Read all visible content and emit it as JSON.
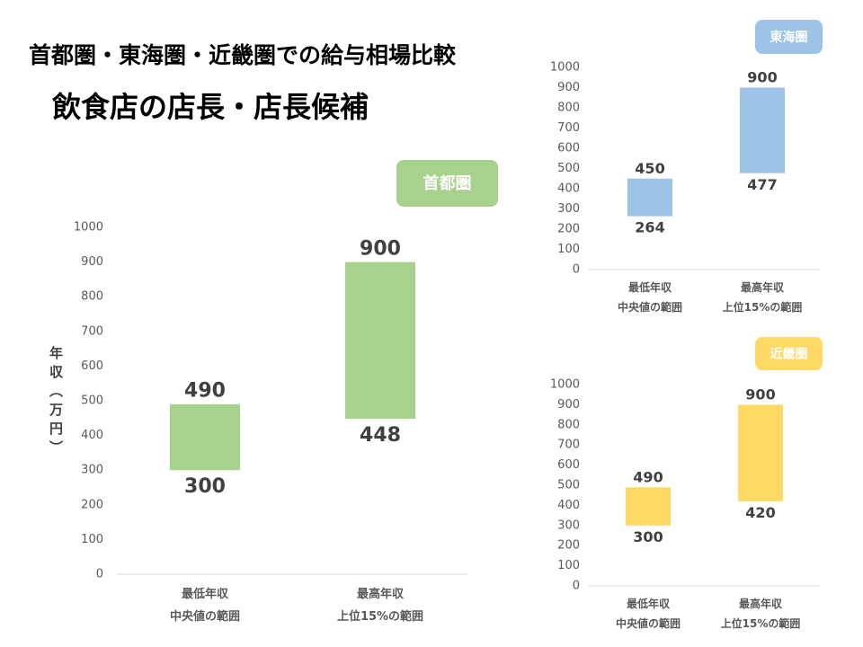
{
  "header": {
    "title": "首都圏・東海圏・近畿圏での給与相場比較",
    "subtitle": "飲食店の店長・店長候補"
  },
  "chart_data": [
    {
      "type": "range_bar",
      "title": "首都圏",
      "color": "#a9d18e",
      "ylabel": "年収（万円）",
      "categories": [
        "最低年収\n中央値の範囲",
        "最高年収\n上位15%の範囲"
      ],
      "low": [
        300,
        448
      ],
      "high": [
        490,
        900
      ],
      "ylim": [
        0,
        1000
      ],
      "yticks": [
        0,
        100,
        200,
        300,
        400,
        500,
        600,
        700,
        800,
        900,
        1000
      ],
      "grid": false
    },
    {
      "type": "range_bar",
      "title": "東海圏",
      "color": "#9dc3e6",
      "categories": [
        "最低年収\n中央値の範囲",
        "最高年収\n上位15%の範囲"
      ],
      "low": [
        264,
        477
      ],
      "high": [
        450,
        900
      ],
      "ylim": [
        0,
        1000
      ],
      "yticks": [
        0,
        100,
        200,
        300,
        400,
        500,
        600,
        700,
        800,
        900,
        1000
      ],
      "grid": false
    },
    {
      "type": "range_bar",
      "title": "近畿圏",
      "color": "#ffd966",
      "categories": [
        "最低年収\n中央値の範囲",
        "最高年収\n上位15%の範囲"
      ],
      "low": [
        300,
        420
      ],
      "high": [
        490,
        900
      ],
      "ylim": [
        0,
        1000
      ],
      "yticks": [
        0,
        100,
        200,
        300,
        400,
        500,
        600,
        700,
        800,
        900,
        1000
      ],
      "grid": false
    }
  ]
}
